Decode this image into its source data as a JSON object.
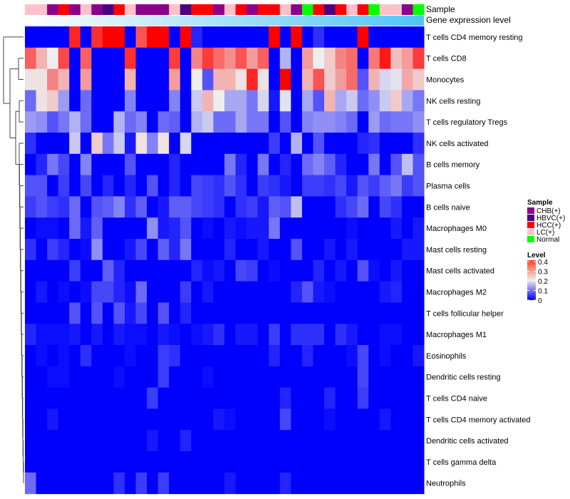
{
  "chart_data": {
    "type": "heatmap",
    "annotation_labels": [
      "Sample",
      "Gene expression level"
    ],
    "samples": [
      "LC(+)",
      "LC(+)",
      "CHB(+)",
      "HCC(+)",
      "CHB(+)",
      "LC(+)",
      "CHB(+)",
      "HBVC(+)",
      "HCC(+)",
      "LC(+)",
      "CHB(+)",
      "CHB(+)",
      "CHB(+)",
      "LC(+)",
      "HBVC(+)",
      "HCC(+)",
      "HCC(+)",
      "CHB(+)",
      "LC(+)",
      "HCC(+)",
      "CHB(+)",
      "HCC(+)",
      "HCC(+)",
      "LC(+)",
      "CHB(+)",
      "Normal",
      "HCC(+)",
      "HBVC(+)",
      "HCC(+)",
      "LC(+)",
      "HCC(+)",
      "Normal",
      "LC(+)",
      "LC(+)",
      "CHB(+)",
      "Normal"
    ],
    "gene_expression_gradient": [
      "#ffffff",
      "#4fc6f5"
    ],
    "rows": [
      {
        "label": "T cells CD4 memory resting",
        "values": [
          0,
          0,
          0,
          0,
          0.37,
          0,
          0.36,
          0.45,
          0.45,
          0,
          0.33,
          0.45,
          0.45,
          0,
          0.45,
          0.03,
          0,
          0,
          0,
          0,
          0,
          0,
          0.45,
          0,
          0.45,
          0,
          0.04,
          0,
          0,
          0,
          0.45,
          0,
          0,
          0,
          0,
          0
        ]
      },
      {
        "label": "T cells CD8",
        "values": [
          0.32,
          0.25,
          0.2,
          0.34,
          0,
          0.32,
          0,
          0,
          0,
          0.36,
          0,
          0,
          0,
          0.35,
          0,
          0.29,
          0.35,
          0.31,
          0.28,
          0.33,
          0.27,
          0.32,
          0,
          0.15,
          0,
          0.27,
          0.2,
          0.23,
          0.29,
          0.31,
          0,
          0.3,
          0.38,
          0.24,
          0.27,
          0.35
        ]
      },
      {
        "label": "Monocytes",
        "values": [
          0.21,
          0.21,
          0.29,
          0.25,
          0,
          0.27,
          0,
          0,
          0,
          0.25,
          0,
          0,
          0,
          0.27,
          0,
          0.2,
          0.07,
          0.25,
          0.25,
          0.21,
          0.37,
          0.21,
          0,
          0.45,
          0,
          0.25,
          0.33,
          0.23,
          0.27,
          0.31,
          0.07,
          0.25,
          0.18,
          0.19,
          0.26,
          0.23
        ]
      },
      {
        "label": "NK cells resting",
        "values": [
          0.09,
          0.21,
          0.23,
          0.13,
          0,
          0.09,
          0,
          0,
          0,
          0.11,
          0,
          0,
          0,
          0.11,
          0,
          0.17,
          0.25,
          0.2,
          0.14,
          0.14,
          0.1,
          0.18,
          0.02,
          0.19,
          0,
          0.14,
          0.07,
          0.25,
          0.14,
          0.17,
          0.09,
          0.12,
          0.17,
          0.23,
          0.14,
          0.1
        ]
      },
      {
        "label": "T cells regulatory  Tregs",
        "values": [
          0.13,
          0.12,
          0.07,
          0.1,
          0.15,
          0.09,
          0,
          0,
          0.15,
          0.09,
          0.11,
          0,
          0.09,
          0.08,
          0,
          0.15,
          0.17,
          0.09,
          0.09,
          0.14,
          0.1,
          0.1,
          0,
          0.07,
          0,
          0.11,
          0.12,
          0.12,
          0.11,
          0.09,
          0,
          0.13,
          0.09,
          0.1,
          0.1,
          0.12
        ]
      },
      {
        "label": "NK cells activated",
        "values": [
          0.04,
          0,
          0,
          0,
          0.17,
          0,
          0.23,
          0.1,
          0.17,
          0.02,
          0.21,
          0.11,
          0.21,
          0,
          0.18,
          0,
          0,
          0,
          0,
          0,
          0,
          0,
          0.05,
          0,
          0.15,
          0,
          0.07,
          0,
          0,
          0,
          0.03,
          0.04,
          0,
          0,
          0,
          0.04
        ]
      },
      {
        "label": "B cells memory",
        "values": [
          0,
          0.03,
          0.1,
          0.06,
          0,
          0.11,
          0,
          0,
          0,
          0.07,
          0,
          0,
          0,
          0.03,
          0,
          0,
          0,
          0,
          0.1,
          0.03,
          0,
          0.1,
          0,
          0.03,
          0,
          0.09,
          0.11,
          0.08,
          0.03,
          0,
          0,
          0.1,
          0,
          0.07,
          0.16,
          0.07
        ]
      },
      {
        "label": "Plasma cells",
        "values": [
          0.07,
          0.07,
          0,
          0.05,
          0,
          0.06,
          0,
          0.03,
          0,
          0.03,
          0,
          0.07,
          0,
          0.03,
          0,
          0.06,
          0.05,
          0.04,
          0.07,
          0.04,
          0,
          0.05,
          0.04,
          0.02,
          0,
          0.05,
          0.05,
          0.04,
          0.06,
          0.02,
          0.07,
          0.05,
          0.08,
          0.1,
          0.05,
          0.07
        ]
      },
      {
        "label": "B cells naive",
        "values": [
          0.05,
          0.07,
          0.05,
          0.04,
          0.09,
          0,
          0.07,
          0.08,
          0.11,
          0.04,
          0.08,
          0,
          0.02,
          0.08,
          0.08,
          0.06,
          0.05,
          0.04,
          0,
          0.04,
          0.05,
          0.02,
          0.08,
          0.07,
          0.16,
          0,
          0,
          0,
          0.04,
          0.06,
          0.09,
          0,
          0.06,
          0.04,
          0,
          0
        ]
      },
      {
        "label": "Macrophages M0",
        "values": [
          0,
          0.01,
          0.01,
          0,
          0.09,
          0.02,
          0.08,
          0,
          0,
          0,
          0,
          0.12,
          0.02,
          0.03,
          0.07,
          0,
          0.01,
          0,
          0.02,
          0.01,
          0.02,
          0.02,
          0.1,
          0,
          0,
          0,
          0,
          0,
          0,
          0.01,
          0,
          0,
          0,
          0.02,
          0,
          0.02
        ]
      },
      {
        "label": "Mast cells resting",
        "values": [
          0.04,
          0,
          0.05,
          0.03,
          0,
          0.01,
          0.12,
          0,
          0,
          0.02,
          0.06,
          0,
          0.08,
          0.03,
          0.1,
          0,
          0,
          0,
          0.03,
          0,
          0,
          0.02,
          0,
          0,
          0.07,
          0,
          0,
          0.02,
          0,
          0.02,
          0,
          0,
          0,
          0,
          0.02,
          0.02
        ]
      },
      {
        "label": "Mast cells activated",
        "values": [
          0,
          0,
          0,
          0,
          0.05,
          0,
          0,
          0.08,
          0.03,
          0,
          0,
          0,
          0,
          0,
          0,
          0.03,
          0.01,
          0.02,
          0,
          0.06,
          0.05,
          0,
          0.01,
          0,
          0,
          0,
          0.03,
          0,
          0.02,
          0,
          0.07,
          0.01,
          0,
          0.02,
          0,
          0
        ]
      },
      {
        "label": "Macrophages M2",
        "values": [
          0,
          0.02,
          0,
          0.01,
          0,
          0.01,
          0.06,
          0.06,
          0.03,
          0.01,
          0.09,
          0,
          0,
          0,
          0.05,
          0,
          0.02,
          0,
          0,
          0,
          0,
          0,
          0,
          0,
          0.03,
          0.07,
          0.02,
          0.01,
          0,
          0,
          0,
          0,
          0.02,
          0.03,
          0,
          0
        ]
      },
      {
        "label": "T cells follicular helper",
        "values": [
          0,
          0,
          0,
          0,
          0.07,
          0,
          0.07,
          0,
          0.07,
          0.02,
          0.06,
          0,
          0.07,
          0,
          0.03,
          0,
          0,
          0,
          0,
          0,
          0,
          0,
          0,
          0,
          0,
          0,
          0,
          0,
          0,
          0,
          0,
          0,
          0,
          0,
          0,
          0
        ]
      },
      {
        "label": "Macrophages M1",
        "values": [
          0.03,
          0.01,
          0.01,
          0.01,
          0.02,
          0,
          0.02,
          0,
          0.02,
          0.01,
          0.01,
          0,
          0.02,
          0.01,
          0,
          0.01,
          0.02,
          0.04,
          0,
          0.02,
          0.02,
          0,
          0.05,
          0,
          0.04,
          0.04,
          0.04,
          0,
          0.04,
          0.02,
          0,
          0,
          0.01,
          0.01,
          0,
          0
        ]
      },
      {
        "label": "Eosinophils",
        "values": [
          0,
          0.01,
          0,
          0.01,
          0,
          0.04,
          0,
          0,
          0,
          0.01,
          0,
          0,
          0.05,
          0.04,
          0,
          0,
          0,
          0,
          0,
          0,
          0,
          0,
          0.03,
          0,
          0,
          0.03,
          0,
          0,
          0,
          0.01,
          0.06,
          0,
          0.01,
          0,
          0,
          0.02
        ]
      },
      {
        "label": "Dendritic cells resting",
        "values": [
          0,
          0,
          0.01,
          0.01,
          0,
          0,
          0,
          0,
          0.01,
          0,
          0,
          0,
          0.05,
          0,
          0,
          0,
          0.01,
          0,
          0,
          0,
          0,
          0,
          0,
          0,
          0,
          0,
          0,
          0,
          0,
          0,
          0.06,
          0,
          0,
          0,
          0,
          0
        ]
      },
      {
        "label": "T cells CD4 naive",
        "values": [
          0,
          0,
          0,
          0,
          0,
          0,
          0,
          0,
          0,
          0,
          0,
          0.05,
          0,
          0,
          0,
          0,
          0,
          0,
          0,
          0,
          0,
          0,
          0,
          0.03,
          0,
          0,
          0,
          0.03,
          0,
          0,
          0.05,
          0,
          0,
          0,
          0,
          0
        ]
      },
      {
        "label": "T cells CD4 memory activated",
        "values": [
          0,
          0,
          0.02,
          0,
          0,
          0,
          0,
          0,
          0,
          0,
          0,
          0,
          0,
          0,
          0,
          0,
          0,
          0.02,
          0.01,
          0,
          0,
          0,
          0,
          0.06,
          0,
          0,
          0,
          0.01,
          0,
          0,
          0,
          0,
          0.02,
          0,
          0,
          0
        ]
      },
      {
        "label": "Dendritic cells activated",
        "values": [
          0,
          0,
          0,
          0,
          0,
          0,
          0,
          0,
          0,
          0,
          0,
          0.02,
          0,
          0,
          0.03,
          0,
          0,
          0,
          0,
          0,
          0,
          0,
          0,
          0,
          0,
          0,
          0,
          0,
          0,
          0,
          0,
          0,
          0,
          0,
          0,
          0
        ]
      },
      {
        "label": "T cells gamma delta",
        "values": [
          0,
          0,
          0,
          0,
          0,
          0,
          0,
          0,
          0,
          0,
          0,
          0,
          0,
          0,
          0,
          0,
          0,
          0,
          0,
          0,
          0,
          0,
          0,
          0,
          0,
          0,
          0,
          0,
          0,
          0,
          0,
          0,
          0,
          0,
          0,
          0
        ]
      },
      {
        "label": "Neutrophils",
        "values": [
          0.09,
          0,
          0,
          0,
          0,
          0,
          0,
          0,
          0.04,
          0,
          0.05,
          0,
          0.05,
          0,
          0,
          0,
          0,
          0,
          0.02,
          0,
          0,
          0,
          0,
          0.03,
          0,
          0,
          0,
          0,
          0,
          0,
          0,
          0,
          0,
          0,
          0,
          0
        ]
      }
    ],
    "color_scale": {
      "min": 0,
      "mid": 0.2,
      "max": 0.4,
      "colors": [
        "#0000ff",
        "#eeeeee",
        "#ff0000"
      ]
    },
    "legend": {
      "sample_title": "Sample",
      "sample_items": [
        {
          "label": "CHB(+)",
          "color": "#8b008b"
        },
        {
          "label": "HBVC(+)",
          "color": "#4b0082"
        },
        {
          "label": "HCC(+)",
          "color": "#ff0000"
        },
        {
          "label": "LC(+)",
          "color": "#ffc0cb"
        },
        {
          "label": "Normal",
          "color": "#00ff00"
        }
      ],
      "level_title": "Level",
      "level_ticks": [
        "0.4",
        "0.3",
        "0.2",
        "0.1",
        "0"
      ],
      "level_tick_values": [
        0.4,
        0.3,
        0.2,
        0.1,
        0
      ],
      "placement": "right"
    },
    "dendrogram": "rows"
  }
}
